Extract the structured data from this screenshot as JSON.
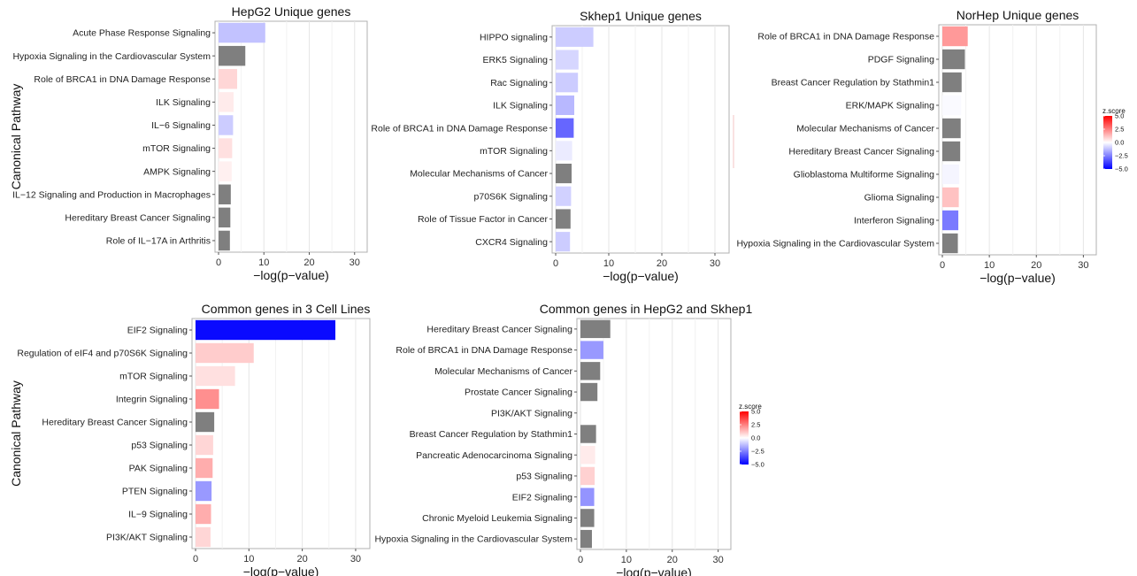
{
  "colors": {
    "grey": "#7f7f7f",
    "low": "#0000ff",
    "mid": "#ffffff",
    "high": "#ff0000"
  },
  "legend": {
    "title": "z.score",
    "ticks": [
      "5.0",
      "2.5",
      "0.0",
      "−2.5",
      "−5.0"
    ],
    "values": [
      5,
      2.5,
      0,
      -2.5,
      -5
    ]
  },
  "chart_data": [
    {
      "type": "bar",
      "orientation": "horizontal",
      "title": "HepG2 Unique genes",
      "xlabel": "−log(p−value)",
      "ylabel": "Canonical Pathway",
      "xlim": [
        0,
        32
      ],
      "xticks": [
        "0",
        "10",
        "20",
        "30"
      ],
      "xtick_values": [
        0,
        10,
        20,
        30
      ],
      "categories": [
        "Acute Phase Response Signaling",
        "Hypoxia Signaling in the Cardiovascular System",
        "Role of BRCA1 in DNA Damage Response",
        "ILK Signaling",
        "IL−6 Signaling",
        "mTOR Signaling",
        "AMPK Signaling",
        "IL−12 Signaling and Production in Macrophages",
        "Hereditary Breast Cancer Signaling",
        "Role of IL−17A in Arthritis"
      ],
      "values": [
        10.3,
        5.9,
        4.1,
        3.3,
        3.2,
        3.0,
        2.9,
        2.7,
        2.6,
        2.5
      ],
      "zscore": [
        -1.2,
        null,
        0.8,
        0.4,
        -1.0,
        0.6,
        0.3,
        null,
        null,
        null
      ]
    },
    {
      "type": "bar",
      "orientation": "horizontal",
      "title": "Skhep1 Unique genes",
      "xlabel": "−log(p−value)",
      "ylabel": "",
      "xlim": [
        0,
        32
      ],
      "xticks": [
        "0",
        "10",
        "20",
        "30"
      ],
      "xtick_values": [
        0,
        10,
        20,
        30
      ],
      "categories": [
        "HIPPO signaling",
        "ERK5 Signaling",
        "Rac Signaling",
        "ILK Signaling",
        "Role of BRCA1 in DNA Damage Response",
        "mTOR Signaling",
        "Molecular Mechanisms of Cancer",
        "p70S6K Signaling",
        "Role of Tissue Factor in Cancer",
        "CXCR4 Signaling"
      ],
      "values": [
        7.1,
        4.3,
        4.2,
        3.5,
        3.4,
        3.1,
        3.0,
        2.9,
        2.8,
        2.7
      ],
      "zscore": [
        -1.0,
        -0.8,
        -1.0,
        -1.4,
        -3.0,
        -0.4,
        null,
        -0.9,
        null,
        -1.0
      ]
    },
    {
      "type": "bar",
      "orientation": "horizontal",
      "title": "NorHep Unique genes",
      "xlabel": "−log(p−value)",
      "ylabel": "",
      "xlim": [
        0,
        32
      ],
      "xticks": [
        "0",
        "10",
        "20",
        "30"
      ],
      "xtick_values": [
        0,
        10,
        20,
        30
      ],
      "categories": [
        "Role of BRCA1 in DNA Damage Response",
        "PDGF Signaling",
        "Breast Cancer Regulation by Stathmin1",
        "ERK/MAPK Signaling",
        "Molecular Mechanisms of Cancer",
        "Hereditary Breast Cancer Signaling",
        "Glioblastoma Multiforme Signaling",
        "Glioma Signaling",
        "Interferon Signaling",
        "Hypoxia Signaling in the Cardiovascular System"
      ],
      "values": [
        5.4,
        4.8,
        4.1,
        4.0,
        3.9,
        3.8,
        3.6,
        3.5,
        3.4,
        3.3
      ],
      "zscore": [
        2.0,
        null,
        null,
        -0.1,
        null,
        null,
        -0.2,
        1.2,
        -2.6,
        null
      ]
    },
    {
      "type": "bar",
      "orientation": "horizontal",
      "title": "Common genes in 3 Cell Lines",
      "xlabel": "−log(p−value)",
      "ylabel": "Canonical Pathway",
      "xlim": [
        0,
        32
      ],
      "xticks": [
        "0",
        "10",
        "20",
        "30"
      ],
      "xtick_values": [
        0,
        10,
        20,
        30
      ],
      "categories": [
        "EIF2 Signaling",
        "Regulation of eIF4 and p70S6K Signaling",
        "mTOR Signaling",
        "Integrin Signaling",
        "Hereditary Breast Cancer Signaling",
        "p53 Signaling",
        "PAK Signaling",
        "PTEN Signaling",
        "IL−9 Signaling",
        "PI3K/AKT Signaling"
      ],
      "values": [
        26.2,
        10.9,
        7.4,
        4.4,
        3.5,
        3.3,
        3.2,
        3.0,
        2.9,
        2.8
      ],
      "zscore": [
        -4.8,
        1.0,
        0.6,
        2.2,
        null,
        0.8,
        1.6,
        -2.0,
        1.6,
        0.8
      ]
    },
    {
      "type": "bar",
      "orientation": "horizontal",
      "title": "Common genes in HepG2 and Skhep1",
      "xlabel": "−log(p−value)",
      "ylabel": "",
      "xlim": [
        0,
        32
      ],
      "xticks": [
        "0",
        "10",
        "20",
        "30"
      ],
      "xtick_values": [
        0,
        10,
        20,
        30
      ],
      "categories": [
        "Hereditary Breast Cancer Signaling",
        "Role of BRCA1 in DNA Damage Response",
        "Molecular Mechanisms of Cancer",
        "Prostate Cancer Signaling",
        "PI3K/AKT Signaling",
        "Breast Cancer Regulation by Stathmin1",
        "Pancreatic Adenocarcinoma Signaling",
        "p53 Signaling",
        "EIF2 Signaling",
        "Chronic Myeloid Leukemia Signaling",
        "Hypoxia Signaling in the Cardiovascular System"
      ],
      "values": [
        6.5,
        5.0,
        4.3,
        3.7,
        0.0,
        3.4,
        3.2,
        3.1,
        3.0,
        3.0,
        2.5
      ],
      "zscore": [
        null,
        -2.0,
        null,
        null,
        0.0,
        null,
        0.4,
        0.9,
        -2.1,
        null,
        null
      ]
    }
  ]
}
